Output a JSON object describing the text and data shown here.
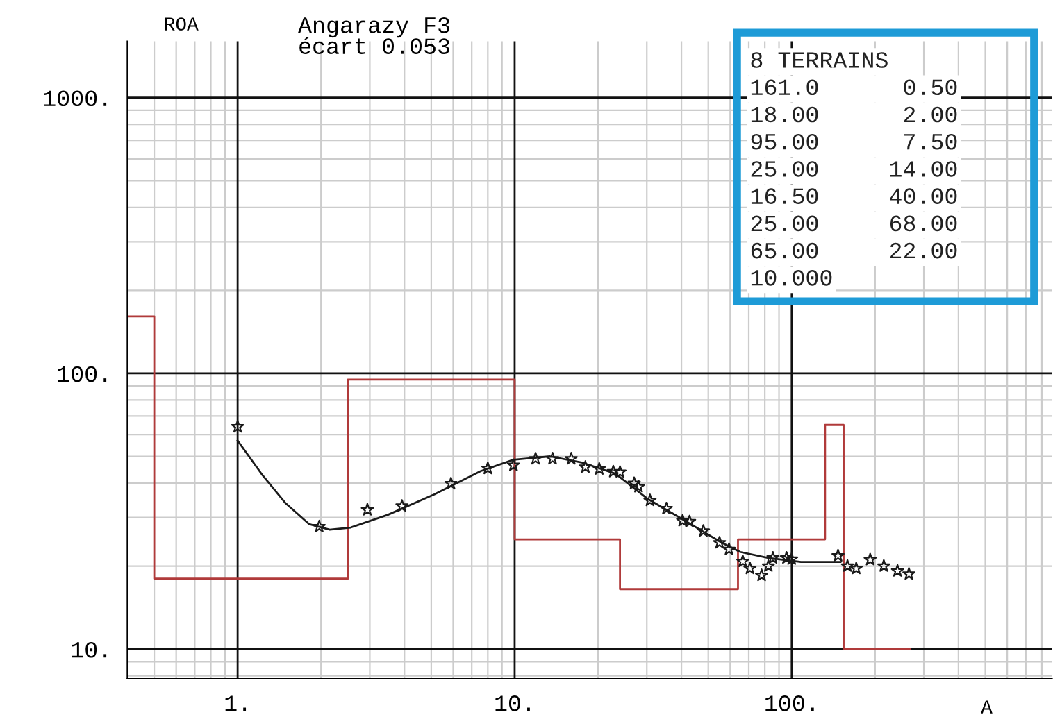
{
  "chart_data": {
    "type": "scatter",
    "title": "Angarazy F3",
    "subtitle": "écart 0.053",
    "xlabel": "A",
    "ylabel": "ROA",
    "annotations": [
      "8 TERRAINS",
      "161.0      0.50",
      "18.00      2.00",
      "95.00      7.50",
      "25.00     14.00",
      "16.50     40.00",
      "25.00     68.00",
      "65.00     22.00",
      "10.000"
    ],
    "log": "xy",
    "grid": true,
    "xlim": [
      0.4,
      870
    ],
    "ylim": [
      7.8,
      1600
    ],
    "xticks": [
      {
        "value": 1,
        "label": "1."
      },
      {
        "value": 10,
        "label": "10."
      },
      {
        "value": 100,
        "label": "100."
      }
    ],
    "yticks": [
      {
        "value": 10,
        "label": "10."
      },
      {
        "value": 100,
        "label": "100."
      },
      {
        "value": 1000,
        "label": "1000."
      }
    ],
    "series": [
      {
        "type": "step",
        "color": "#b03a3a",
        "line_style": "solid",
        "marker": "none",
        "x": [
          0.4,
          0.5,
          2.5,
          10,
          24,
          64,
          132,
          154,
          268
        ],
        "values": [
          161,
          18,
          95,
          25,
          16.5,
          25,
          65,
          10,
          10
        ]
      },
      {
        "type": "line",
        "color": "#1a1a1a",
        "line_style": "solid",
        "marker": "none",
        "x": [
          1,
          1.23,
          1.49,
          1.81,
          2.15,
          2.56,
          3.49,
          5.13,
          7.54,
          9.9,
          13.4,
          17.6,
          23.1,
          30.3,
          41.2,
          56,
          65.2,
          82.4,
          108,
          150
        ],
        "values": [
          57,
          42.7,
          33.8,
          28.4,
          27.1,
          27.6,
          30.7,
          36.4,
          44.2,
          48.6,
          50,
          47.4,
          43.3,
          35,
          29.2,
          24.3,
          22.5,
          21.4,
          20.7,
          20.7
        ]
      },
      {
        "color": "#1a1a1a",
        "marker": "star",
        "x": [
          1,
          1.97,
          2.94,
          3.92,
          5.89,
          8.0,
          9.9,
          11.9,
          13.7,
          16,
          18,
          20.2,
          22.7,
          24,
          27,
          28,
          30.8,
          35.3,
          40.4,
          42.8,
          48,
          54.9,
          59.4,
          66.6,
          70.7,
          77.9,
          82.4,
          85.6,
          95.8,
          100,
          147,
          159,
          171,
          192,
          215,
          241,
          265
        ],
        "values": [
          64,
          27.8,
          32,
          33,
          39.8,
          45.2,
          46.4,
          49,
          49,
          49,
          45.7,
          45,
          44,
          43.8,
          39.9,
          38.8,
          34.6,
          32.3,
          29.2,
          29,
          26.8,
          24.3,
          23,
          20.8,
          19.6,
          18.5,
          20,
          21.4,
          21.4,
          21.2,
          21.8,
          20,
          19.6,
          21.1,
          20,
          19.2,
          18.7
        ]
      }
    ]
  }
}
